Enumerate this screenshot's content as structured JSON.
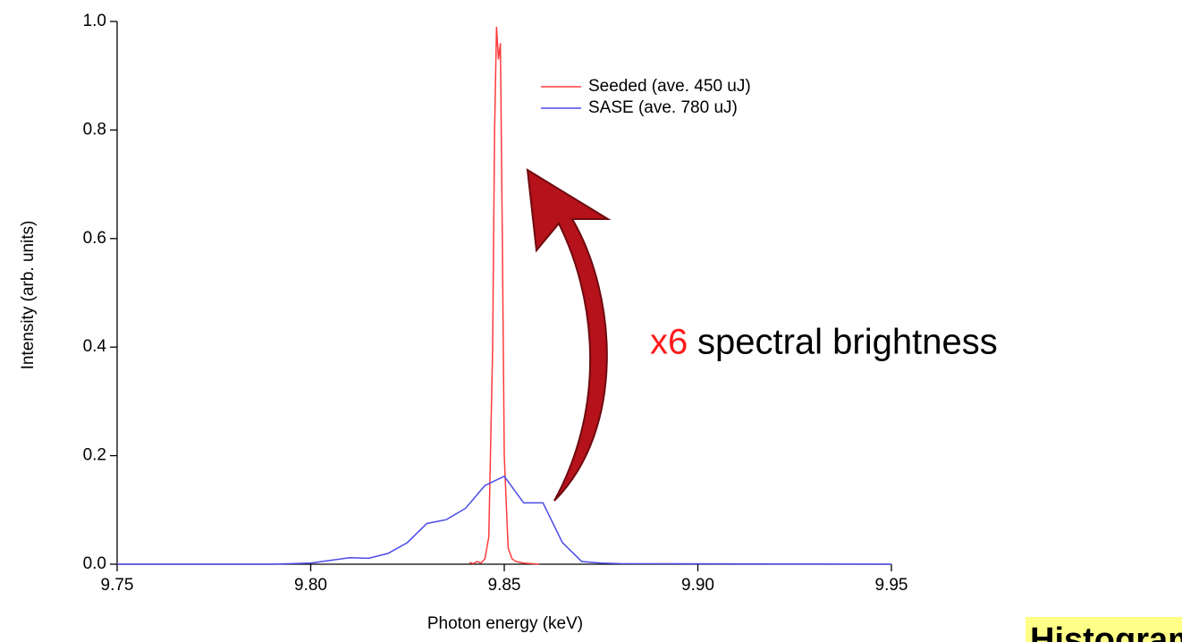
{
  "chart_data": {
    "type": "line",
    "x_label": "Photon energy (keV)",
    "y_label": "Intensity (arb. units)",
    "xlim": [
      9.75,
      9.95
    ],
    "ylim": [
      0,
      1.0
    ],
    "xticks": [
      9.75,
      {
        "value": 9.8,
        "label": "9.80"
      },
      9.85,
      {
        "value": 9.9,
        "label": "9.90"
      },
      9.95
    ],
    "yticks": [
      {
        "value": 0,
        "label": "0.0"
      },
      0.2,
      0.4,
      0.6,
      0.8,
      {
        "value": 1,
        "label": "1.0"
      }
    ],
    "legend": "upper right",
    "series": [
      {
        "name": "Seeded (ave. 450 uJ)",
        "color": "#ff3b3b",
        "x": [
          9.841,
          9.842,
          9.843,
          9.844,
          9.845,
          9.846,
          9.847,
          9.8475,
          9.848,
          9.8485,
          9.849,
          9.8495,
          9.85,
          9.851,
          9.852,
          9.853,
          9.855,
          9.859
        ],
        "values": [
          0.003,
          0.001,
          0.005,
          0.002,
          0.01,
          0.05,
          0.4,
          0.8,
          0.99,
          0.93,
          0.96,
          0.6,
          0.2,
          0.03,
          0.01,
          0.005,
          0.002,
          0
        ]
      },
      {
        "name": "SASE (ave. 780 uJ)",
        "color": "#4a4ae8",
        "x": [
          9.75,
          9.79,
          9.8,
          9.805,
          9.81,
          9.815,
          9.82,
          9.825,
          9.83,
          9.835,
          9.84,
          9.845,
          9.85,
          9.855,
          9.86,
          9.865,
          9.87,
          9.875,
          9.88,
          9.95
        ],
        "values": [
          0,
          0,
          0.002,
          0.007,
          0.012,
          0.011,
          0.02,
          0.04,
          0.075,
          0.082,
          0.103,
          0.145,
          0.162,
          0.113,
          0.113,
          0.04,
          0.005,
          0.002,
          0.001,
          0
        ]
      }
    ],
    "annotations": {
      "factor": "x6",
      "text": "spectral brightness",
      "caption": "Histogram of (seeded"
    }
  }
}
